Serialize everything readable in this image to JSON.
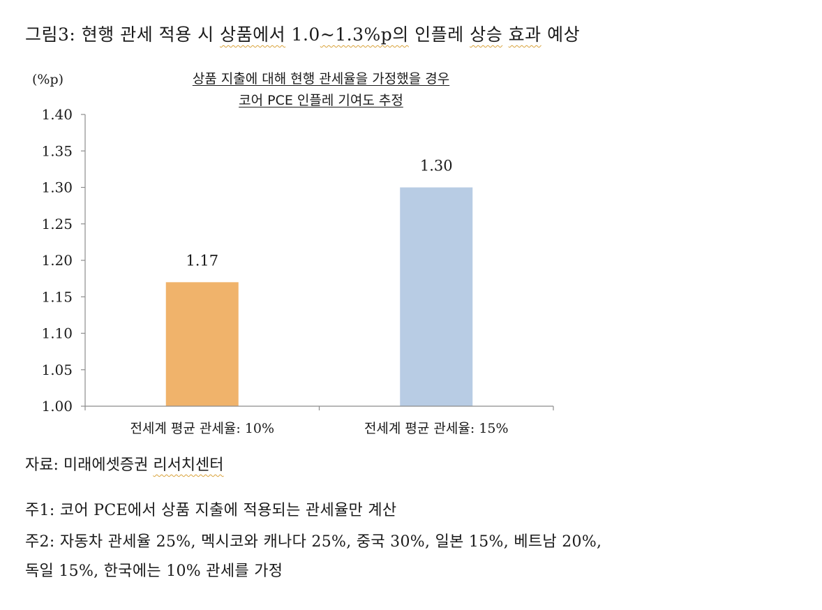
{
  "heading": {
    "prefix": "그림3: 현행 관세 적용 시 ",
    "mark1": "상품에서",
    "middle": " 1.0",
    "mark2": "~1.3%p의",
    "middle2": " 인플레 ",
    "mark3": "상승",
    "gap": " ",
    "mark4": "효과",
    "suffix": " 예상"
  },
  "chart_data": {
    "type": "bar",
    "title_line1": "상품 지출에 대해 현행 관세율을 가정했을 경우",
    "title_line2": "코어 PCE 인플레 기여도 추정",
    "ylabel": "(%p)",
    "ylim": [
      1.0,
      1.4
    ],
    "yticks": [
      "1.00",
      "1.05",
      "1.10",
      "1.15",
      "1.20",
      "1.25",
      "1.30",
      "1.35",
      "1.40"
    ],
    "categories": [
      "전세계 평균 관세율: 10%",
      "전세계 평균 관세율: 15%"
    ],
    "values": [
      1.17,
      1.3
    ],
    "value_labels": [
      "1.17",
      "1.30"
    ],
    "colors": [
      "#f0b36b",
      "#b8cce4"
    ],
    "grid": false
  },
  "source": {
    "prefix": "자료: 미래에셋증권 ",
    "mark": "리서치센터"
  },
  "notes": [
    "주1: 코어 PCE에서 상품 지출에 적용되는 관세율만 계산",
    "주2: 자동차 관세율 25%, 멕시코와 캐나다 25%, 중국 30%, 일본 15%, 베트남 20%,",
    "독일 15%, 한국에는 10% 관세를 가정"
  ]
}
